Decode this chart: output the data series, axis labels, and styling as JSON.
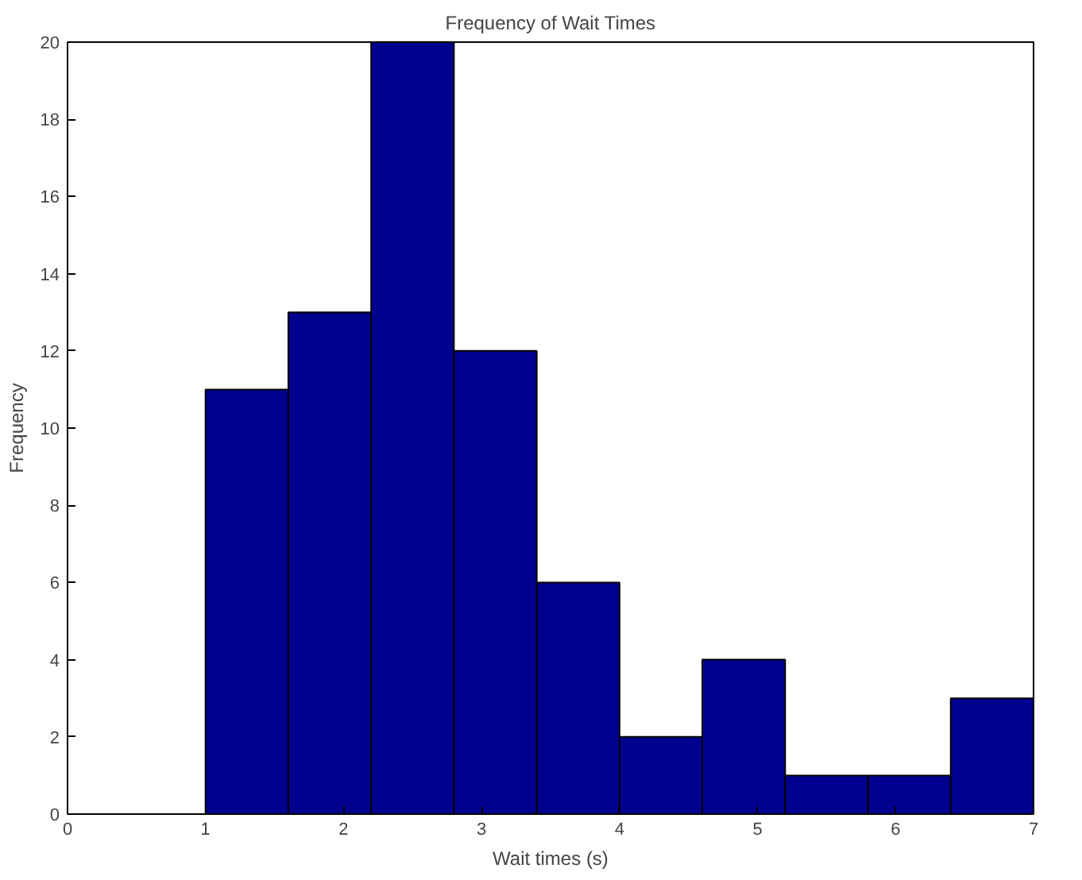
{
  "chart_data": {
    "type": "histogram",
    "title": "Frequency of Wait Times",
    "xlabel": "Wait times (s)",
    "ylabel": "Frequency",
    "bins": [
      1.0,
      1.6,
      2.2,
      2.8,
      3.4,
      4.0,
      4.6,
      5.2,
      5.8,
      6.4,
      7.0
    ],
    "values": [
      11,
      13,
      20,
      12,
      6,
      2,
      4,
      1,
      1,
      3
    ],
    "color": "#00008f",
    "xlim": [
      0,
      7
    ],
    "xticks": [
      0,
      1,
      2,
      3,
      4,
      5,
      6,
      7
    ],
    "ylim": [
      0,
      20
    ],
    "yticks": [
      0,
      2,
      4,
      6,
      8,
      10,
      12,
      14,
      16,
      18,
      20
    ],
    "grid": false
  }
}
